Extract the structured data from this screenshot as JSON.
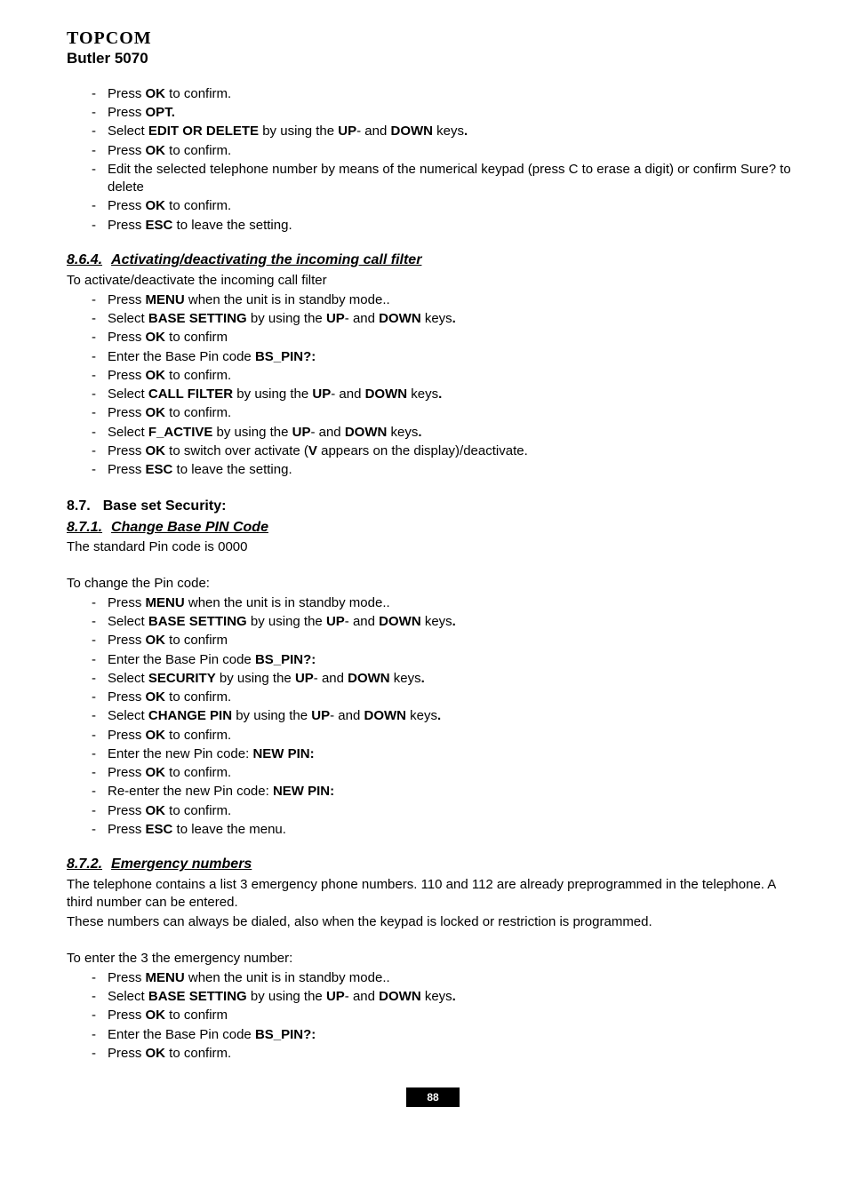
{
  "header": {
    "brand": "TOPCOM",
    "model": "Butler 5070"
  },
  "intro_steps": [
    [
      {
        "t": "Press "
      },
      {
        "t": "OK",
        "b": true
      },
      {
        "t": " to confirm."
      }
    ],
    [
      {
        "t": "Press "
      },
      {
        "t": "OPT.",
        "b": true
      }
    ],
    [
      {
        "t": "Select "
      },
      {
        "t": "EDIT OR DELETE",
        "b": true
      },
      {
        "t": " by using the "
      },
      {
        "t": "UP",
        "b": true
      },
      {
        "t": "- and "
      },
      {
        "t": "DOWN",
        "b": true
      },
      {
        "t": " keys"
      },
      {
        "t": ".",
        "b": true
      }
    ],
    [
      {
        "t": "Press "
      },
      {
        "t": "OK",
        "b": true
      },
      {
        "t": " to confirm."
      }
    ],
    [
      {
        "t": "Edit the selected telephone number by means of the numerical keypad (press C to erase a digit) or confirm Sure? to delete"
      }
    ],
    [
      {
        "t": "Press "
      },
      {
        "t": "OK",
        "b": true
      },
      {
        "t": " to confirm."
      }
    ],
    [
      {
        "t": "Press "
      },
      {
        "t": "ESC",
        "b": true
      },
      {
        "t": " to leave the setting."
      }
    ]
  ],
  "s864": {
    "num": "8.6.4.",
    "title": "Activating/deactivating the incoming call filter",
    "lead": "To activate/deactivate the incoming call filter",
    "steps": [
      [
        {
          "t": "Press "
        },
        {
          "t": "MENU",
          "b": true
        },
        {
          "t": " when the unit is in standby mode.."
        }
      ],
      [
        {
          "t": "Select "
        },
        {
          "t": "BASE SETTING",
          "b": true
        },
        {
          "t": " by using the "
        },
        {
          "t": "UP",
          "b": true
        },
        {
          "t": "- and "
        },
        {
          "t": "DOWN",
          "b": true
        },
        {
          "t": " keys"
        },
        {
          "t": ".",
          "b": true
        }
      ],
      [
        {
          "t": "Press "
        },
        {
          "t": "OK",
          "b": true
        },
        {
          "t": " to confirm"
        }
      ],
      [
        {
          "t": "Enter the Base Pin code "
        },
        {
          "t": "BS_PIN?:",
          "b": true
        }
      ],
      [
        {
          "t": "Press "
        },
        {
          "t": "OK",
          "b": true
        },
        {
          "t": " to confirm."
        }
      ],
      [
        {
          "t": "Select "
        },
        {
          "t": "CALL FILTER",
          "b": true
        },
        {
          "t": " by using the "
        },
        {
          "t": "UP",
          "b": true
        },
        {
          "t": "- and "
        },
        {
          "t": "DOWN",
          "b": true
        },
        {
          "t": " keys"
        },
        {
          "t": ".",
          "b": true
        }
      ],
      [
        {
          "t": "Press "
        },
        {
          "t": "OK",
          "b": true
        },
        {
          "t": " to confirm."
        }
      ],
      [
        {
          "t": "Select "
        },
        {
          "t": "F_ACTIVE",
          "b": true
        },
        {
          "t": " by using the "
        },
        {
          "t": "UP",
          "b": true
        },
        {
          "t": "- and "
        },
        {
          "t": "DOWN",
          "b": true
        },
        {
          "t": " keys"
        },
        {
          "t": ".",
          "b": true
        }
      ],
      [
        {
          "t": "Press "
        },
        {
          "t": "OK",
          "b": true
        },
        {
          "t": " to switch over activate ("
        },
        {
          "t": "V",
          "b": true
        },
        {
          "t": " appears on the display)/deactivate."
        }
      ],
      [
        {
          "t": "Press "
        },
        {
          "t": "ESC",
          "b": true
        },
        {
          "t": " to leave the setting."
        }
      ]
    ]
  },
  "s87": {
    "num": "8.7.",
    "title": "Base set Security:"
  },
  "s871": {
    "num": "8.7.1.",
    "title": "Change Base PIN Code",
    "para1": "The standard Pin code is 0000",
    "para2": "To change the Pin code:",
    "steps": [
      [
        {
          "t": "Press "
        },
        {
          "t": "MENU",
          "b": true
        },
        {
          "t": " when the unit is in standby mode.."
        }
      ],
      [
        {
          "t": "Select "
        },
        {
          "t": "BASE SETTING",
          "b": true
        },
        {
          "t": " by using the "
        },
        {
          "t": "UP",
          "b": true
        },
        {
          "t": "- and "
        },
        {
          "t": "DOWN",
          "b": true
        },
        {
          "t": " keys"
        },
        {
          "t": ".",
          "b": true
        }
      ],
      [
        {
          "t": "Press "
        },
        {
          "t": "OK",
          "b": true
        },
        {
          "t": " to confirm"
        }
      ],
      [
        {
          "t": "Enter the Base Pin code "
        },
        {
          "t": "BS_PIN?:",
          "b": true
        }
      ],
      [
        {
          "t": "Select "
        },
        {
          "t": "SECURITY",
          "b": true
        },
        {
          "t": " by using the "
        },
        {
          "t": "UP",
          "b": true
        },
        {
          "t": "- and "
        },
        {
          "t": "DOWN",
          "b": true
        },
        {
          "t": " keys"
        },
        {
          "t": ".",
          "b": true
        }
      ],
      [
        {
          "t": "Press "
        },
        {
          "t": "OK",
          "b": true
        },
        {
          "t": " to confirm."
        }
      ],
      [
        {
          "t": "Select "
        },
        {
          "t": "CHANGE PIN",
          "b": true
        },
        {
          "t": " by using the "
        },
        {
          "t": "UP",
          "b": true
        },
        {
          "t": "- and "
        },
        {
          "t": "DOWN",
          "b": true
        },
        {
          "t": " keys"
        },
        {
          "t": ".",
          "b": true
        }
      ],
      [
        {
          "t": "Press "
        },
        {
          "t": "OK",
          "b": true
        },
        {
          "t": " to confirm."
        }
      ],
      [
        {
          "t": "Enter the new Pin code: "
        },
        {
          "t": "NEW PIN:",
          "b": true
        }
      ],
      [
        {
          "t": "Press "
        },
        {
          "t": "OK",
          "b": true
        },
        {
          "t": " to confirm."
        }
      ],
      [
        {
          "t": "Re-enter the new Pin code: "
        },
        {
          "t": "NEW PIN:",
          "b": true
        }
      ],
      [
        {
          "t": "Press "
        },
        {
          "t": "OK",
          "b": true
        },
        {
          "t": " to confirm."
        }
      ],
      [
        {
          "t": "Press "
        },
        {
          "t": "ESC",
          "b": true
        },
        {
          "t": " to leave the menu."
        }
      ]
    ]
  },
  "s872": {
    "num": "8.7.2.",
    "title": "Emergency numbers",
    "para1": "The telephone contains a list 3 emergency phone numbers. 110 and 112 are already preprogrammed in the telephone. A third number can be entered.",
    "para2": "These numbers can always be dialed, also when the keypad is locked or restriction is programmed.",
    "para3": "To enter the 3 the emergency number:",
    "steps": [
      [
        {
          "t": "Press "
        },
        {
          "t": "MENU",
          "b": true
        },
        {
          "t": " when the unit is in standby mode.."
        }
      ],
      [
        {
          "t": "Select "
        },
        {
          "t": "BASE SETTING",
          "b": true
        },
        {
          "t": " by using the "
        },
        {
          "t": "UP",
          "b": true
        },
        {
          "t": "- and "
        },
        {
          "t": "DOWN",
          "b": true
        },
        {
          "t": " keys"
        },
        {
          "t": ".",
          "b": true
        }
      ],
      [
        {
          "t": "Press "
        },
        {
          "t": "OK",
          "b": true
        },
        {
          "t": " to confirm"
        }
      ],
      [
        {
          "t": "Enter the Base Pin code "
        },
        {
          "t": "BS_PIN?:",
          "b": true
        }
      ],
      [
        {
          "t": "Press "
        },
        {
          "t": "OK",
          "b": true
        },
        {
          "t": " to confirm."
        }
      ]
    ]
  },
  "page_number": "88"
}
